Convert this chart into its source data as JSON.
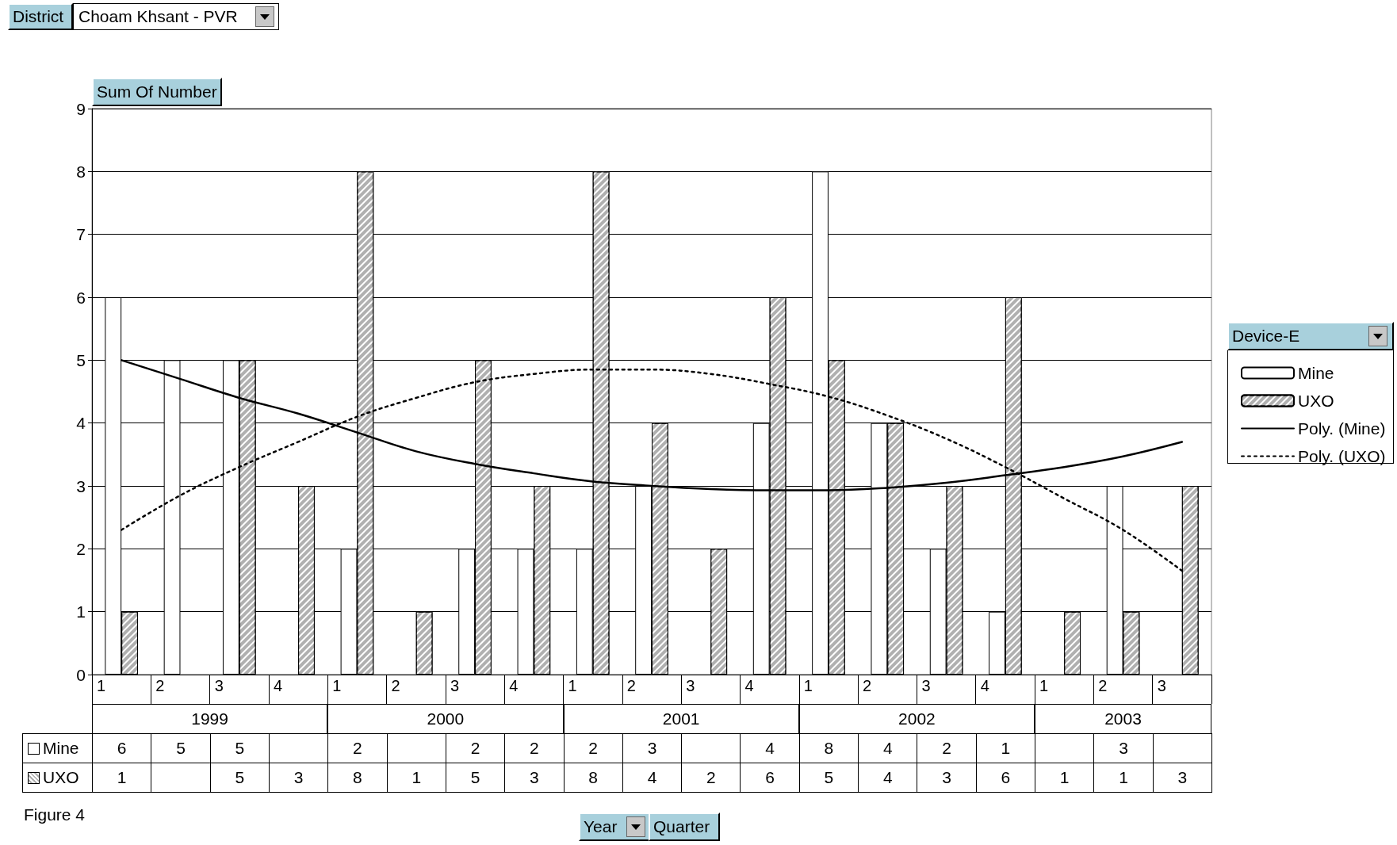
{
  "chart_data": {
    "type": "bar",
    "ylabel": "Sum Of Number",
    "legend_title": "Device-E",
    "categories": [
      "1",
      "2",
      "3",
      "4",
      "1",
      "2",
      "3",
      "4",
      "1",
      "2",
      "3",
      "4",
      "1",
      "2",
      "3",
      "4",
      "1",
      "2",
      "3"
    ],
    "series": [
      {
        "name": "Mine",
        "color": "#ffffff",
        "values": [
          6,
          5,
          5,
          null,
          2,
          null,
          2,
          2,
          2,
          3,
          null,
          4,
          8,
          4,
          2,
          1,
          null,
          3,
          null
        ],
        "value_labels": [
          "6",
          "5",
          "5",
          null,
          "2",
          null,
          "2",
          "2",
          "2",
          "3",
          null,
          "4",
          "8",
          "4",
          "2",
          "1",
          null,
          "3",
          null
        ]
      },
      {
        "name": "UXO",
        "color": "#b0b0b0",
        "values": [
          1,
          null,
          5,
          3,
          8,
          1,
          5,
          3,
          8,
          4,
          2,
          6,
          5,
          4,
          3,
          6,
          1,
          1,
          3
        ],
        "value_labels": [
          "1",
          null,
          "5",
          "3",
          "8",
          "1",
          "5",
          "3",
          "8",
          "4",
          "2",
          "6",
          "5",
          "4",
          "3",
          "6",
          "1",
          "1",
          "3"
        ]
      },
      {
        "name": "Poly. (Mine)",
        "type": "line",
        "color": "#000000",
        "line_style": "solid",
        "values": [
          5.0,
          4.7,
          4.4,
          4.15,
          3.85,
          3.55,
          3.35,
          3.2,
          3.07,
          3.0,
          2.95,
          2.93,
          2.93,
          2.97,
          3.05,
          3.17,
          3.3,
          3.47,
          3.7
        ]
      },
      {
        "name": "Poly. (UXO)",
        "type": "line",
        "color": "#000000",
        "line_style": "dotted",
        "values": [
          2.3,
          2.85,
          3.3,
          3.7,
          4.1,
          4.4,
          4.65,
          4.78,
          4.85,
          4.85,
          4.78,
          4.62,
          4.42,
          4.12,
          3.75,
          3.3,
          2.8,
          2.3,
          1.65
        ]
      }
    ],
    "ylim": [
      0,
      9
    ],
    "yticks": [
      0,
      1,
      2,
      3,
      4,
      5,
      6,
      7,
      8,
      9
    ],
    "grid": "y",
    "legend": "right",
    "marker": "none",
    "annotations": [
      "District",
      "Choam Khsant - PVR",
      "1999",
      "2000",
      "2001",
      "2002",
      "2003",
      "Year",
      "Quarter",
      "Figure 4"
    ]
  }
}
